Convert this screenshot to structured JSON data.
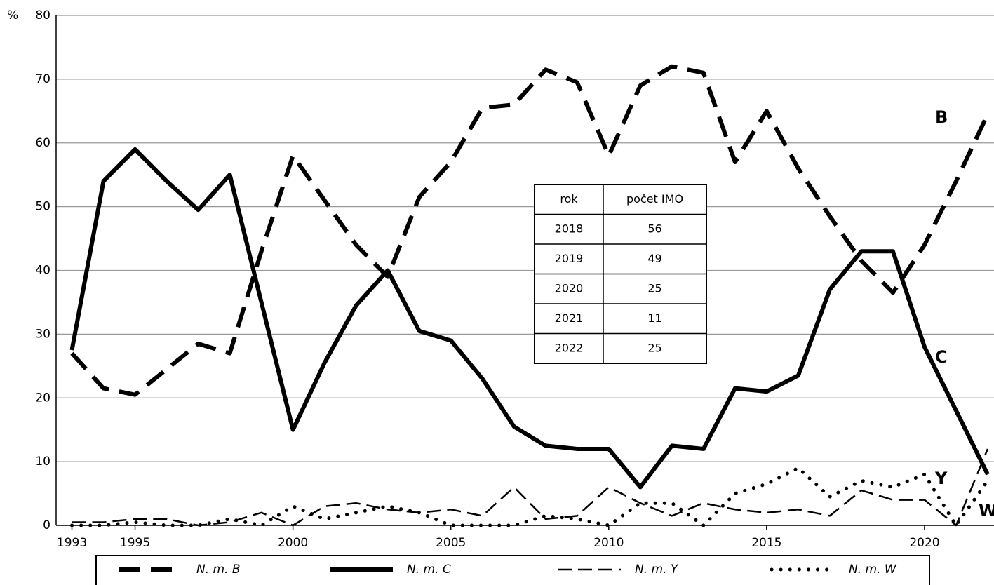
{
  "chart_data": {
    "type": "line",
    "ylabel": "%",
    "x": [
      1993,
      1994,
      1995,
      1996,
      1997,
      1998,
      1999,
      2000,
      2001,
      2002,
      2003,
      2004,
      2005,
      2006,
      2007,
      2008,
      2009,
      2010,
      2011,
      2012,
      2013,
      2014,
      2015,
      2016,
      2017,
      2018,
      2019,
      2020,
      2021,
      2022
    ],
    "xlim": [
      1992.5,
      2022.2
    ],
    "xticks": [
      1993,
      1995,
      2000,
      2005,
      2010,
      2015,
      2020
    ],
    "ylim": [
      0,
      80
    ],
    "yticks": [
      0,
      10,
      20,
      30,
      40,
      50,
      60,
      70,
      80
    ],
    "grid": true,
    "series": [
      {
        "name": "N. m. B",
        "end_label": "B",
        "color": "#000000",
        "style": "dashed",
        "values": [
          27,
          21.5,
          20.5,
          24.5,
          28.5,
          27,
          43,
          58,
          51,
          44,
          39,
          51.5,
          57,
          65.5,
          66,
          71.5,
          69.5,
          58,
          69,
          72,
          71,
          57,
          65,
          56,
          48.5,
          41.5,
          36.5,
          44,
          54,
          64.5
        ]
      },
      {
        "name": "N. m. C",
        "end_label": "C",
        "color": "#000000",
        "style": "solid",
        "values": [
          27.5,
          54,
          59,
          54,
          49.5,
          55,
          35,
          15,
          25.5,
          34.5,
          40,
          30.5,
          29,
          23,
          15.5,
          12.5,
          12,
          12,
          6,
          12.5,
          12,
          21.5,
          21,
          23.5,
          37,
          43,
          43,
          28,
          18,
          8
        ]
      },
      {
        "name": "N. m. Y",
        "end_label": "Y",
        "color": "#000000",
        "style": "dash",
        "values": [
          0.5,
          0.5,
          1,
          1,
          0,
          0.5,
          2,
          0,
          3,
          3.5,
          2.5,
          2,
          2.5,
          1.5,
          6,
          1,
          1.5,
          6,
          3.5,
          1.5,
          3.5,
          2.5,
          2,
          2.5,
          1.5,
          5.5,
          4,
          4,
          0,
          12
        ]
      },
      {
        "name": "N. m. W",
        "end_label": "W",
        "color": "#000000",
        "style": "dotted",
        "values": [
          0,
          0,
          0.5,
          0,
          0,
          1,
          0,
          3,
          1,
          2,
          3,
          2,
          0,
          0,
          0,
          1.5,
          1,
          0,
          3.5,
          3.5,
          0,
          5,
          6.5,
          9,
          4.5,
          7,
          6,
          8,
          0,
          7
        ]
      }
    ]
  },
  "table": {
    "header": [
      "rok",
      "počet IMO"
    ],
    "rows": [
      [
        "2018",
        "56"
      ],
      [
        "2019",
        "49"
      ],
      [
        "2020",
        "25"
      ],
      [
        "2021",
        "11"
      ],
      [
        "2022",
        "25"
      ]
    ]
  }
}
